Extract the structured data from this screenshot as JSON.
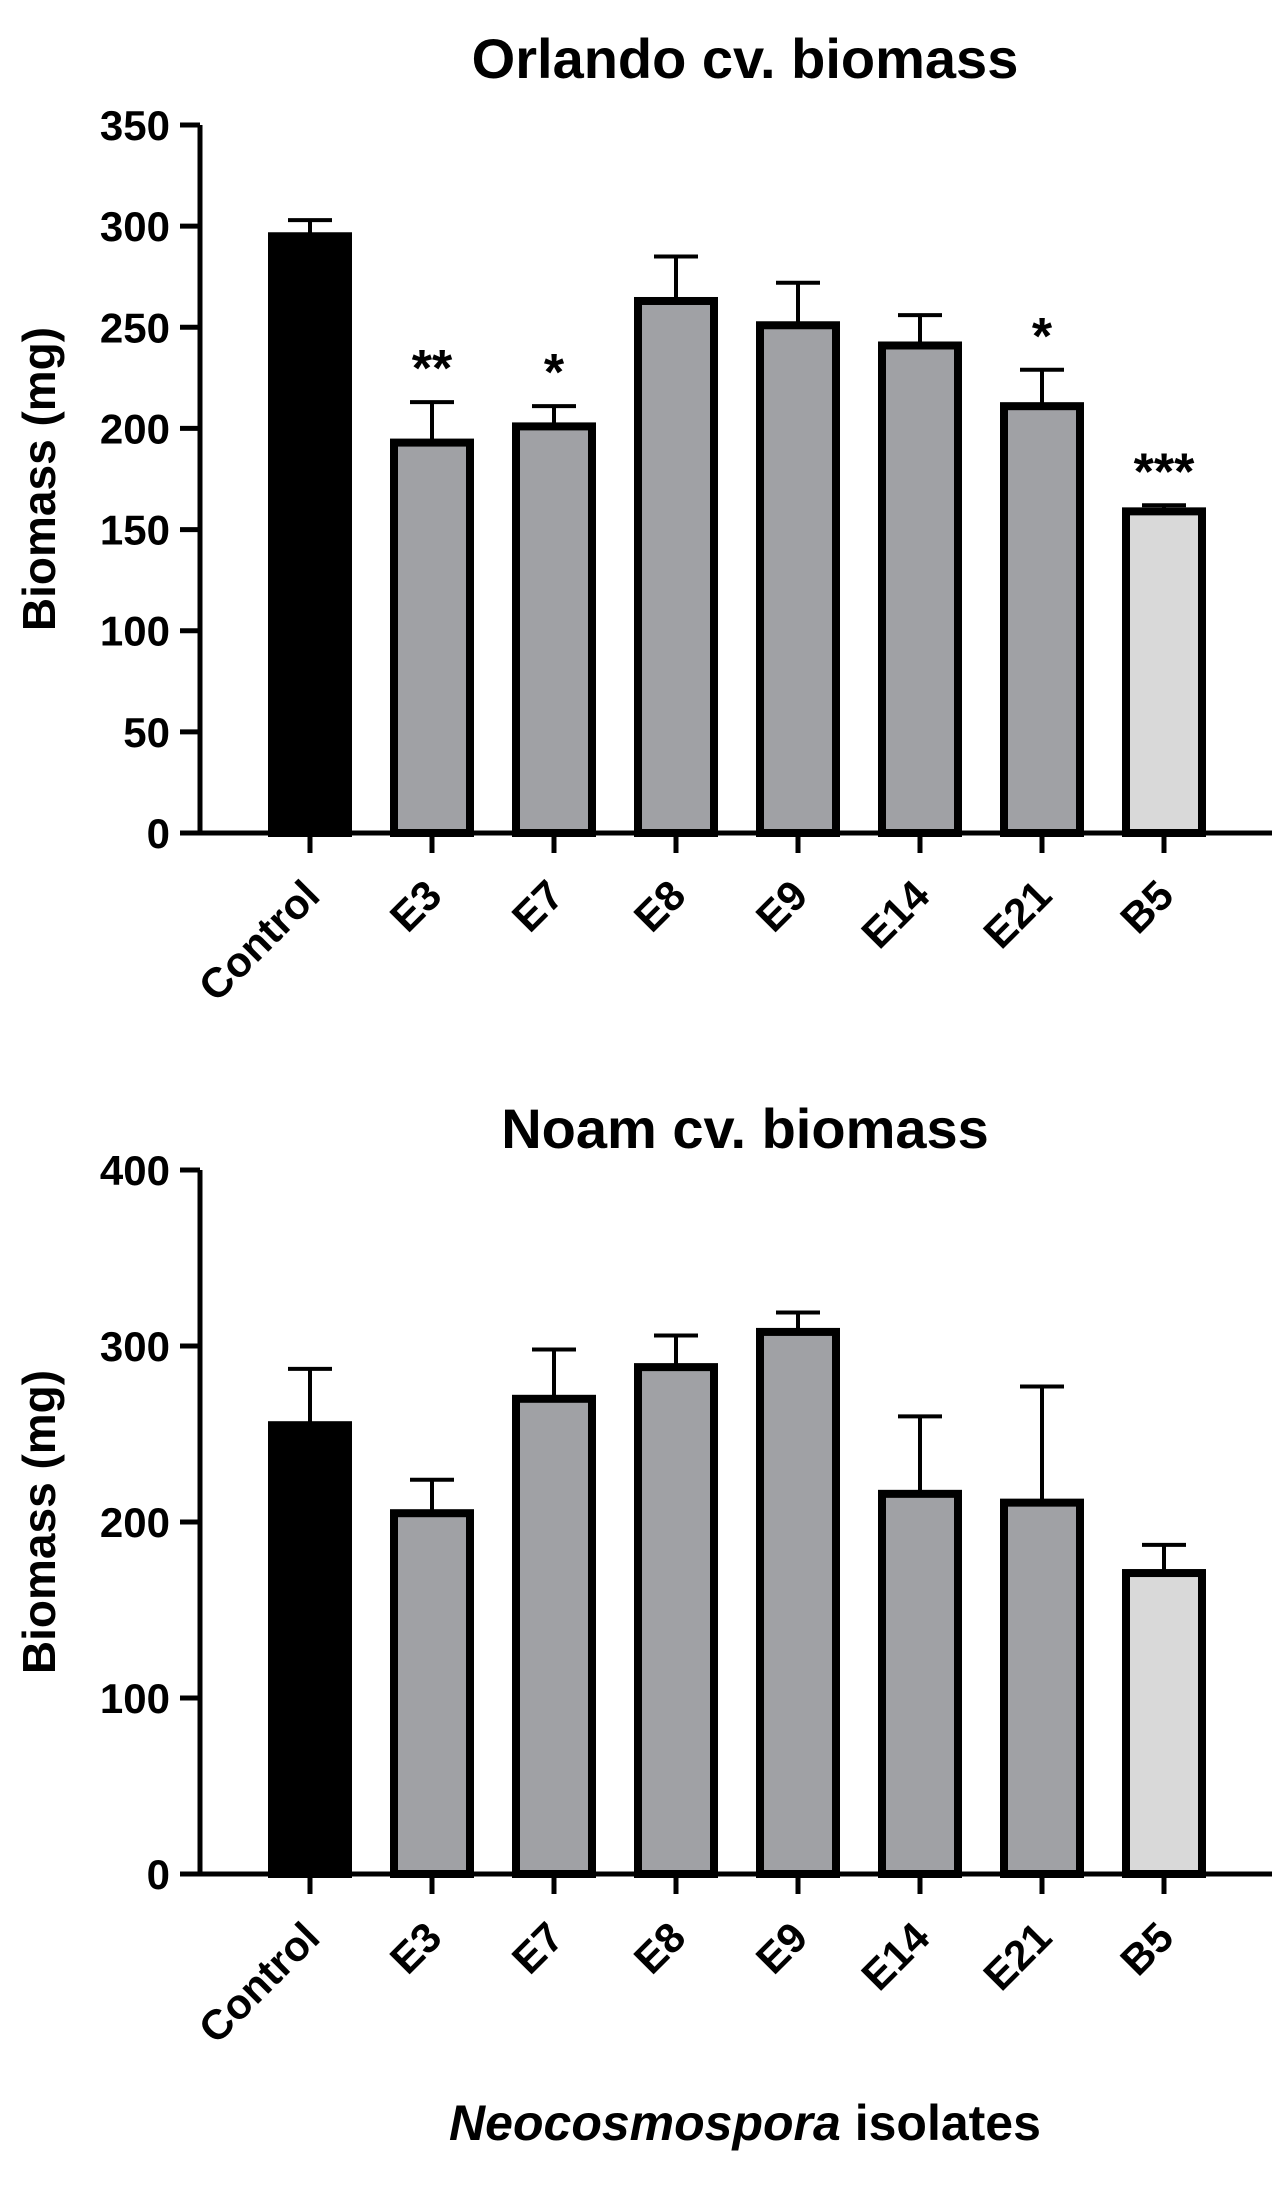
{
  "chart_data": [
    {
      "type": "bar",
      "title": "Orlando cv. biomass",
      "ylabel": "Biomass (mg)",
      "xlabel": "",
      "ylim": [
        0,
        350
      ],
      "yticks": [
        0,
        50,
        100,
        150,
        200,
        250,
        300,
        350
      ],
      "categories": [
        "Control",
        "E3",
        "E7",
        "E8",
        "E9",
        "E14",
        "E21",
        "B5"
      ],
      "values": [
        295,
        193,
        201,
        263,
        251,
        241,
        211,
        159
      ],
      "errors": [
        8,
        20,
        10,
        22,
        21,
        15,
        18,
        3
      ],
      "significance": [
        "",
        "**",
        "*",
        "",
        "",
        "",
        "*",
        "***"
      ],
      "colors": [
        "#000000",
        "#a0a1a5",
        "#a0a1a5",
        "#a0a1a5",
        "#a0a1a5",
        "#a0a1a5",
        "#a0a1a5",
        "#d9d9d9"
      ]
    },
    {
      "type": "bar",
      "title": "Noam cv. biomass",
      "ylabel": "Biomass (mg)",
      "xlabel": "",
      "ylim": [
        0,
        400
      ],
      "yticks": [
        0,
        100,
        200,
        300,
        400
      ],
      "categories": [
        "Control",
        "E3",
        "E7",
        "E8",
        "E9",
        "E14",
        "E21",
        "B5"
      ],
      "values": [
        255,
        205,
        270,
        288,
        308,
        216,
        211,
        171
      ],
      "errors": [
        32,
        19,
        28,
        18,
        11,
        44,
        66,
        16
      ],
      "significance": [
        "",
        "",
        "",
        "",
        "",
        "",
        "",
        ""
      ],
      "colors": [
        "#000000",
        "#a0a1a5",
        "#a0a1a5",
        "#a0a1a5",
        "#a0a1a5",
        "#a0a1a5",
        "#a0a1a5",
        "#d9d9d9"
      ]
    }
  ],
  "shared_xlabel": {
    "italic_part": "Neocosmospora",
    "plain_part": " isolates"
  }
}
